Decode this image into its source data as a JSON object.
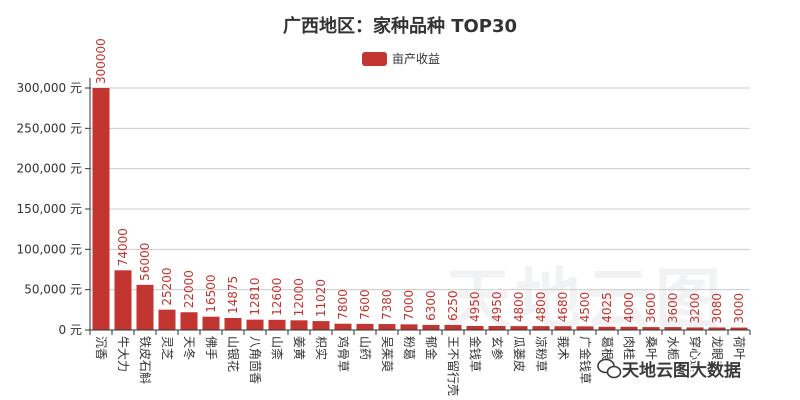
{
  "watermark": {
    "logo_text": "天地云图",
    "account_text": "天地云图大数据",
    "icon": "chat-bubble-icon"
  },
  "chart_data": {
    "type": "bar",
    "title": "广西地区：家种品种 TOP30",
    "legend_position": "top-center",
    "categories": [
      "沉香",
      "牛大力",
      "铁皮石斛",
      "灵芝",
      "天冬",
      "佛手",
      "山银花",
      "八角茴香",
      "山柰",
      "姜黄",
      "枳实",
      "鸡骨草",
      "山药",
      "吴茱萸",
      "粉葛",
      "郁金",
      "王不留行壳",
      "金钱草",
      "玄参",
      "瓜蒌皮",
      "凉粉草",
      "莪术",
      "广金钱草",
      "葛根",
      "肉桂",
      "桑叶",
      "水栀子",
      "穿心莲",
      "龙眼肉",
      "荷叶"
    ],
    "series": [
      {
        "name": "亩产收益",
        "color": "#c23531",
        "values": [
          300000,
          74000,
          56000,
          25200,
          22000,
          16500,
          14875,
          12810,
          12600,
          12000,
          11020,
          7800,
          7600,
          7380,
          7000,
          6300,
          6250,
          4950,
          4950,
          4800,
          4800,
          4680,
          4500,
          4025,
          4000,
          3600,
          3600,
          3200,
          3080,
          3000
        ]
      }
    ],
    "ylim": [
      0,
      300000
    ],
    "yticks": [
      0,
      50000,
      100000,
      150000,
      200000,
      250000,
      300000
    ],
    "ytick_labels": [
      "0 元",
      "50,000 元",
      "100,000 元",
      "150,000 元",
      "200,000 元",
      "250,000 元",
      "300,000 元"
    ],
    "grid": true,
    "data_labels": true
  }
}
